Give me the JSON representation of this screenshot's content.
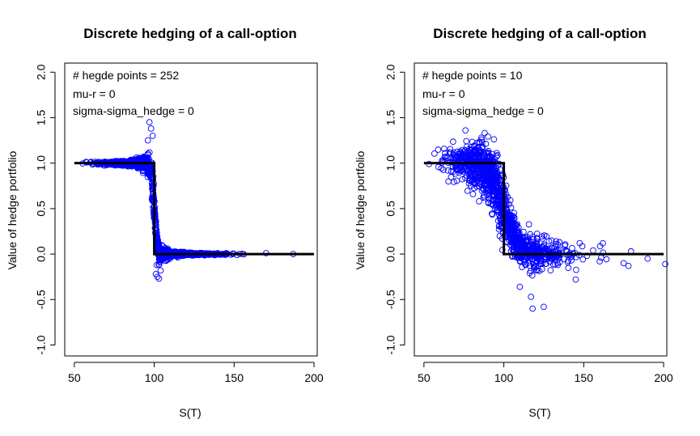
{
  "colors": {
    "points": "#0000ff",
    "payoff": "#000000"
  },
  "chart_data": [
    {
      "type": "scatter",
      "title": "Discrete hedging of a call-option",
      "xlabel": "S(T)",
      "ylabel": "Value of hedge portfolio",
      "xlim": [
        44,
        202
      ],
      "ylim": [
        -1.12,
        2.1
      ],
      "xticks": [
        "50",
        "100",
        "150",
        "200"
      ],
      "yticks": [
        "-1.0",
        "-0.5",
        "0.0",
        "0.5",
        "1.0",
        "1.5",
        "2.0"
      ],
      "legend": [
        "# hegde points = 252",
        "mu-r = 0",
        "sigma-sigma_hedge = 0"
      ],
      "legend_position": "top-left",
      "strike": 100,
      "payoff_line": {
        "x": [
          50,
          100,
          100,
          200
        ],
        "y": [
          1,
          1,
          0,
          0
        ]
      },
      "noise_scale": 0.055,
      "outliers": [
        [
          97,
          1.45
        ],
        [
          98,
          1.38
        ],
        [
          96,
          1.25
        ],
        [
          99,
          1.3
        ],
        [
          101,
          -0.22
        ],
        [
          102,
          -0.25
        ],
        [
          103,
          -0.27
        ],
        [
          101.5,
          -0.12
        ],
        [
          104,
          -0.18
        ],
        [
          170,
          0.01
        ],
        [
          187,
          0
        ]
      ]
    },
    {
      "type": "scatter",
      "title": "Discrete hedging of a call-option",
      "xlabel": "S(T)",
      "ylabel": "",
      "xlim": [
        44,
        202
      ],
      "ylim": [
        -1.12,
        2.1
      ],
      "xticks": [
        "50",
        "100",
        "150",
        "200"
      ],
      "yticks": [
        "-1.0",
        "-0.5",
        "0.0",
        "0.5",
        "1.0",
        "1.5",
        "2.0"
      ],
      "legend": [
        "# hegde points = 10",
        "mu-r = 0",
        "sigma-sigma_hedge = 0"
      ],
      "legend_position": "top-left",
      "strike": 100,
      "payoff_line": {
        "x": [
          50,
          100,
          100,
          200
        ],
        "y": [
          1,
          1,
          0,
          0
        ]
      },
      "noise_scale": 0.18,
      "outliers": [
        [
          76,
          1.36
        ],
        [
          88,
          1.33
        ],
        [
          86,
          1.28
        ],
        [
          118,
          -0.6
        ],
        [
          125,
          -0.58
        ],
        [
          117,
          -0.47
        ],
        [
          110,
          -0.36
        ],
        [
          145,
          -0.28
        ],
        [
          160,
          -0.08
        ],
        [
          175,
          -0.1
        ],
        [
          178,
          -0.13
        ],
        [
          201,
          -0.11
        ],
        [
          190,
          -0.05
        ]
      ]
    }
  ]
}
